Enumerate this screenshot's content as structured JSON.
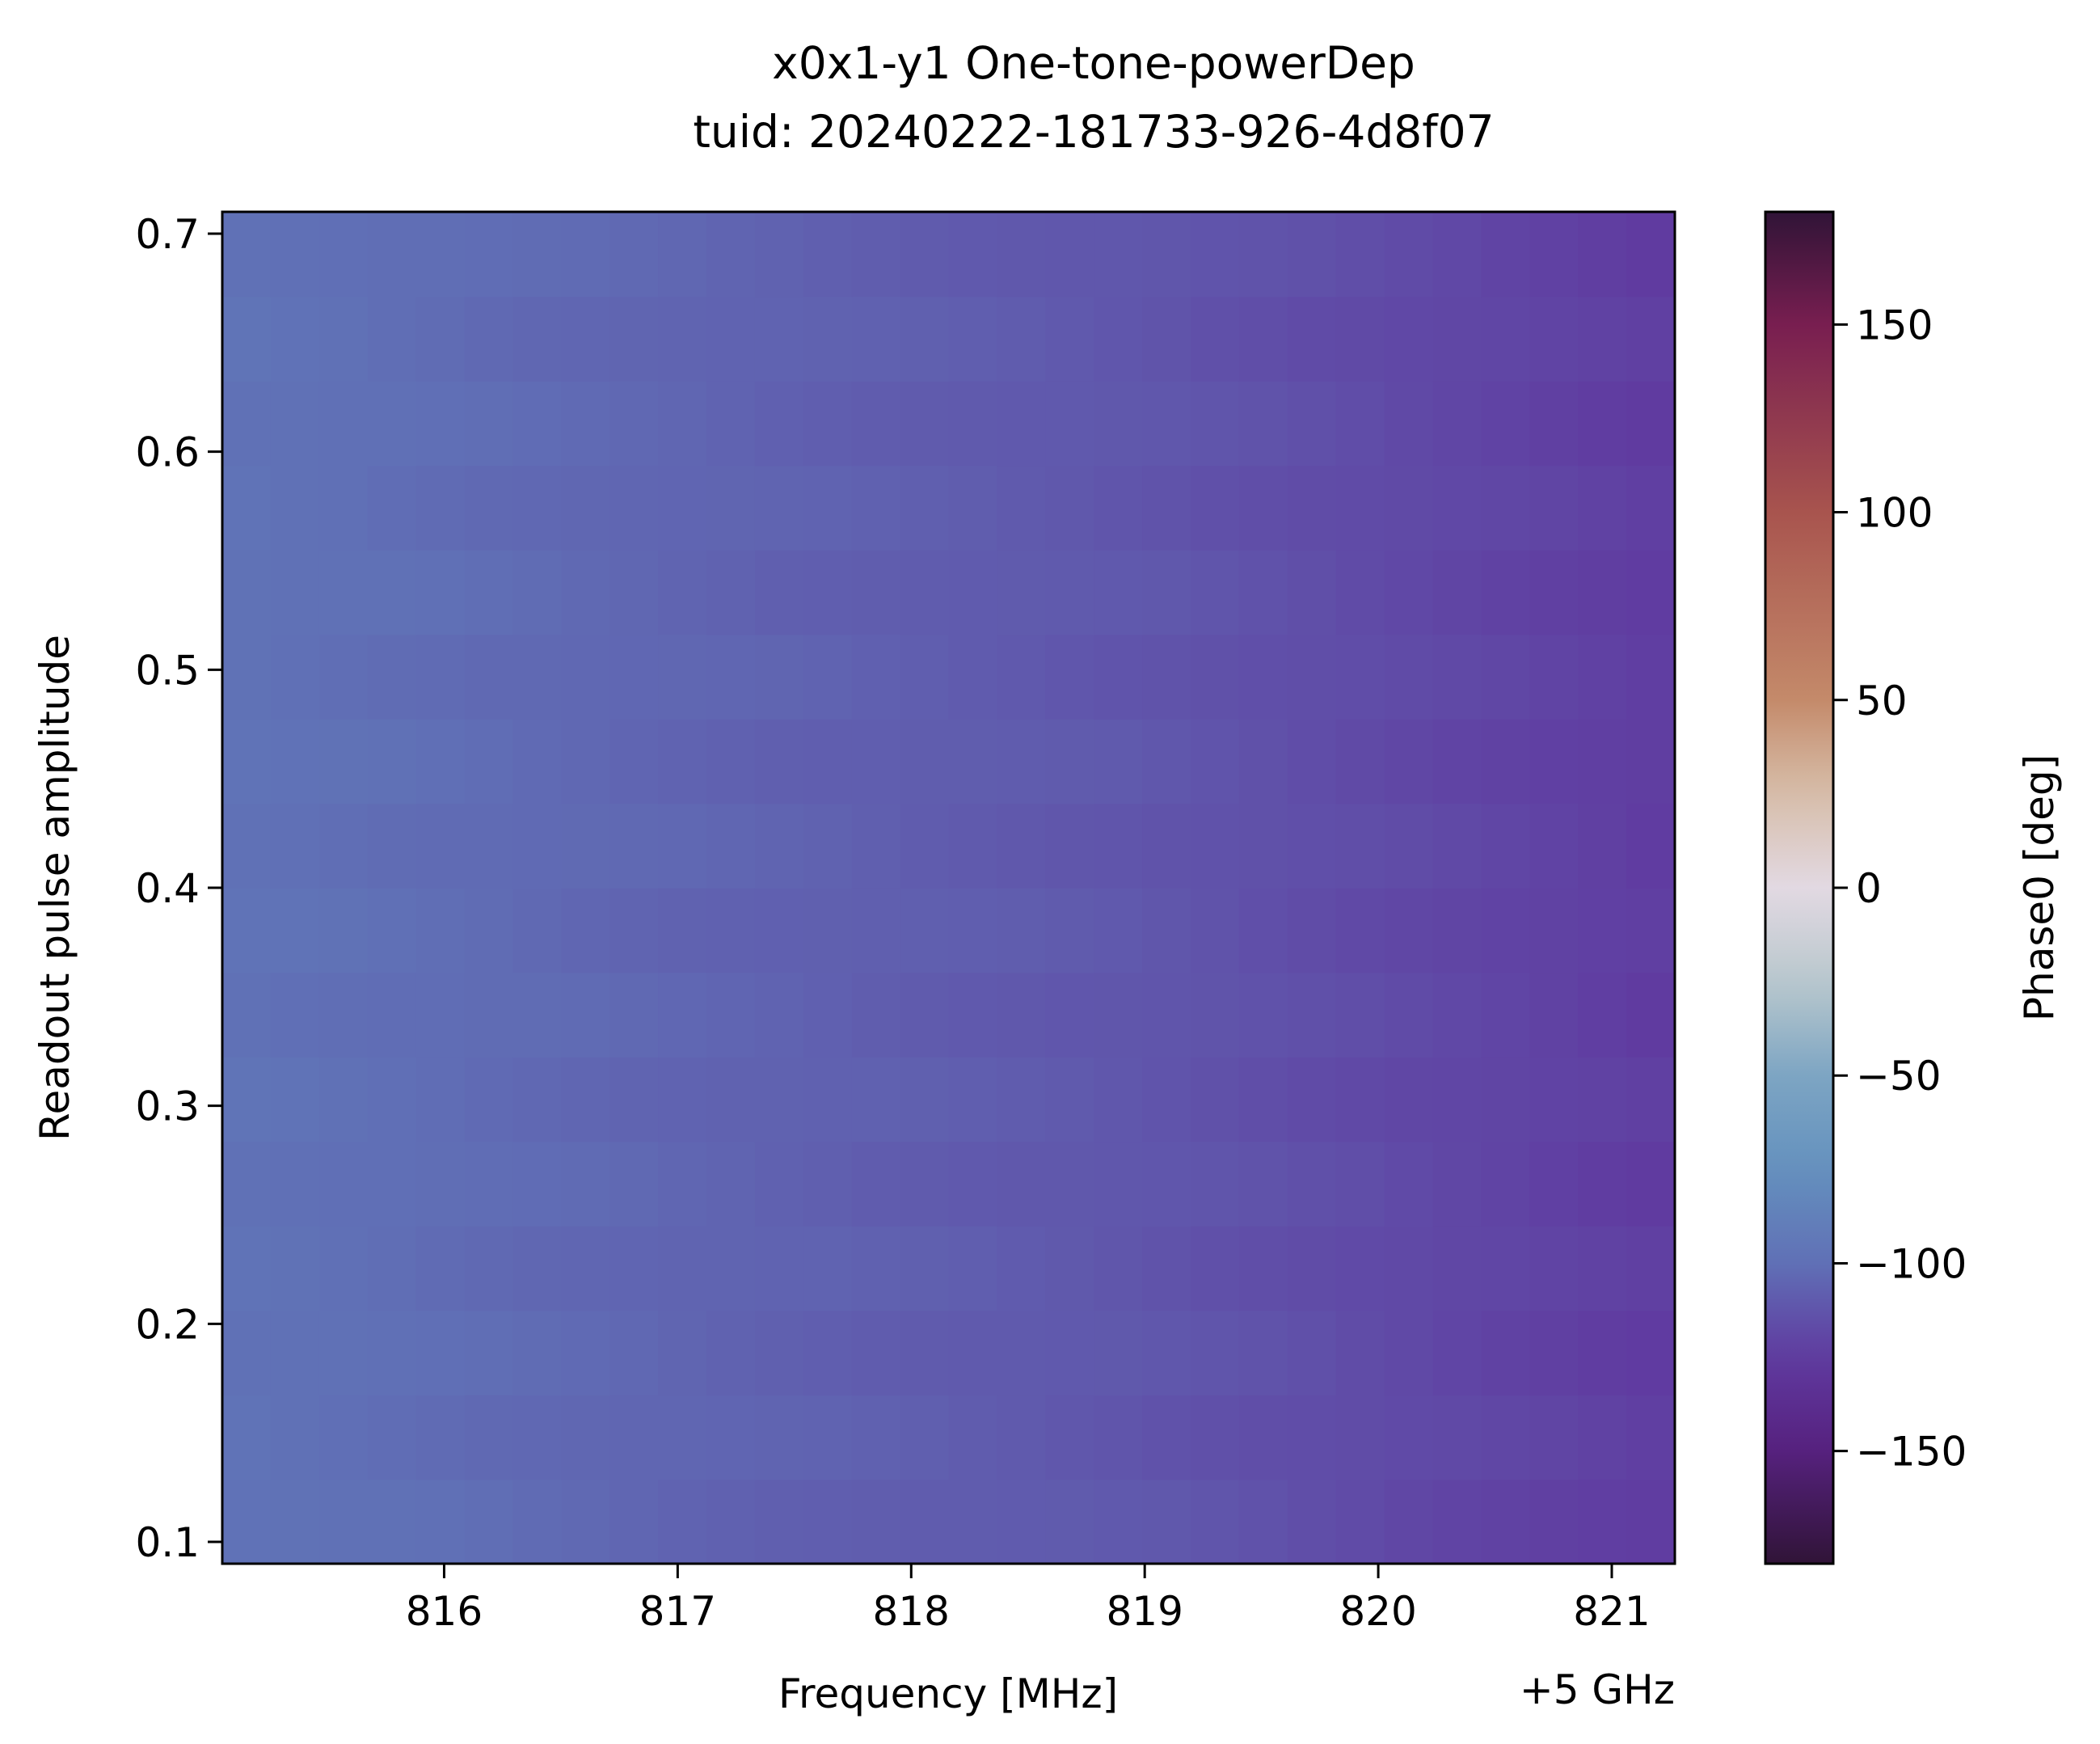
{
  "chart_data": {
    "type": "heatmap",
    "title": "x0x1-y1 One-tone-powerDep",
    "subtitle": "tuid: 20240222-181733-926-4d8f07",
    "xlabel": "Frequency [MHz]",
    "x_offset_label": "+5 GHz",
    "ylabel": "Readout pulse amplitude",
    "colorbar_label": "Phase0 [deg]",
    "colormap": "twilight_shifted",
    "color_limits": [
      -180,
      180
    ],
    "xlim": [
      815.05,
      821.27
    ],
    "ylim": [
      0.09,
      0.71
    ],
    "x_ticks": [
      816,
      817,
      818,
      819,
      820,
      821
    ],
    "x_tick_labels": [
      "816",
      "817",
      "818",
      "819",
      "820",
      "821"
    ],
    "y_ticks": [
      0.1,
      0.2,
      0.3,
      0.4,
      0.5,
      0.6,
      0.7
    ],
    "y_tick_labels": [
      "0.1",
      "0.2",
      "0.3",
      "0.4",
      "0.5",
      "0.6",
      "0.7"
    ],
    "colorbar_ticks": [
      -150,
      -100,
      -50,
      0,
      50,
      100,
      150
    ],
    "colorbar_tick_labels": [
      "−150",
      "−100",
      "−50",
      "0",
      "50",
      "100",
      "150"
    ],
    "frequency_grid_mhz": {
      "start": 815.05,
      "stop": 821.27,
      "points": 30
    },
    "amplitude_grid": {
      "start": 0.09,
      "stop": 0.71,
      "points": 16
    },
    "phase_trend_deg": {
      "at_frequency_mhz": [
        815.05,
        817.0,
        819.0,
        821.27
      ],
      "phase_deg": [
        -98,
        -105,
        -112,
        -124
      ]
    }
  }
}
